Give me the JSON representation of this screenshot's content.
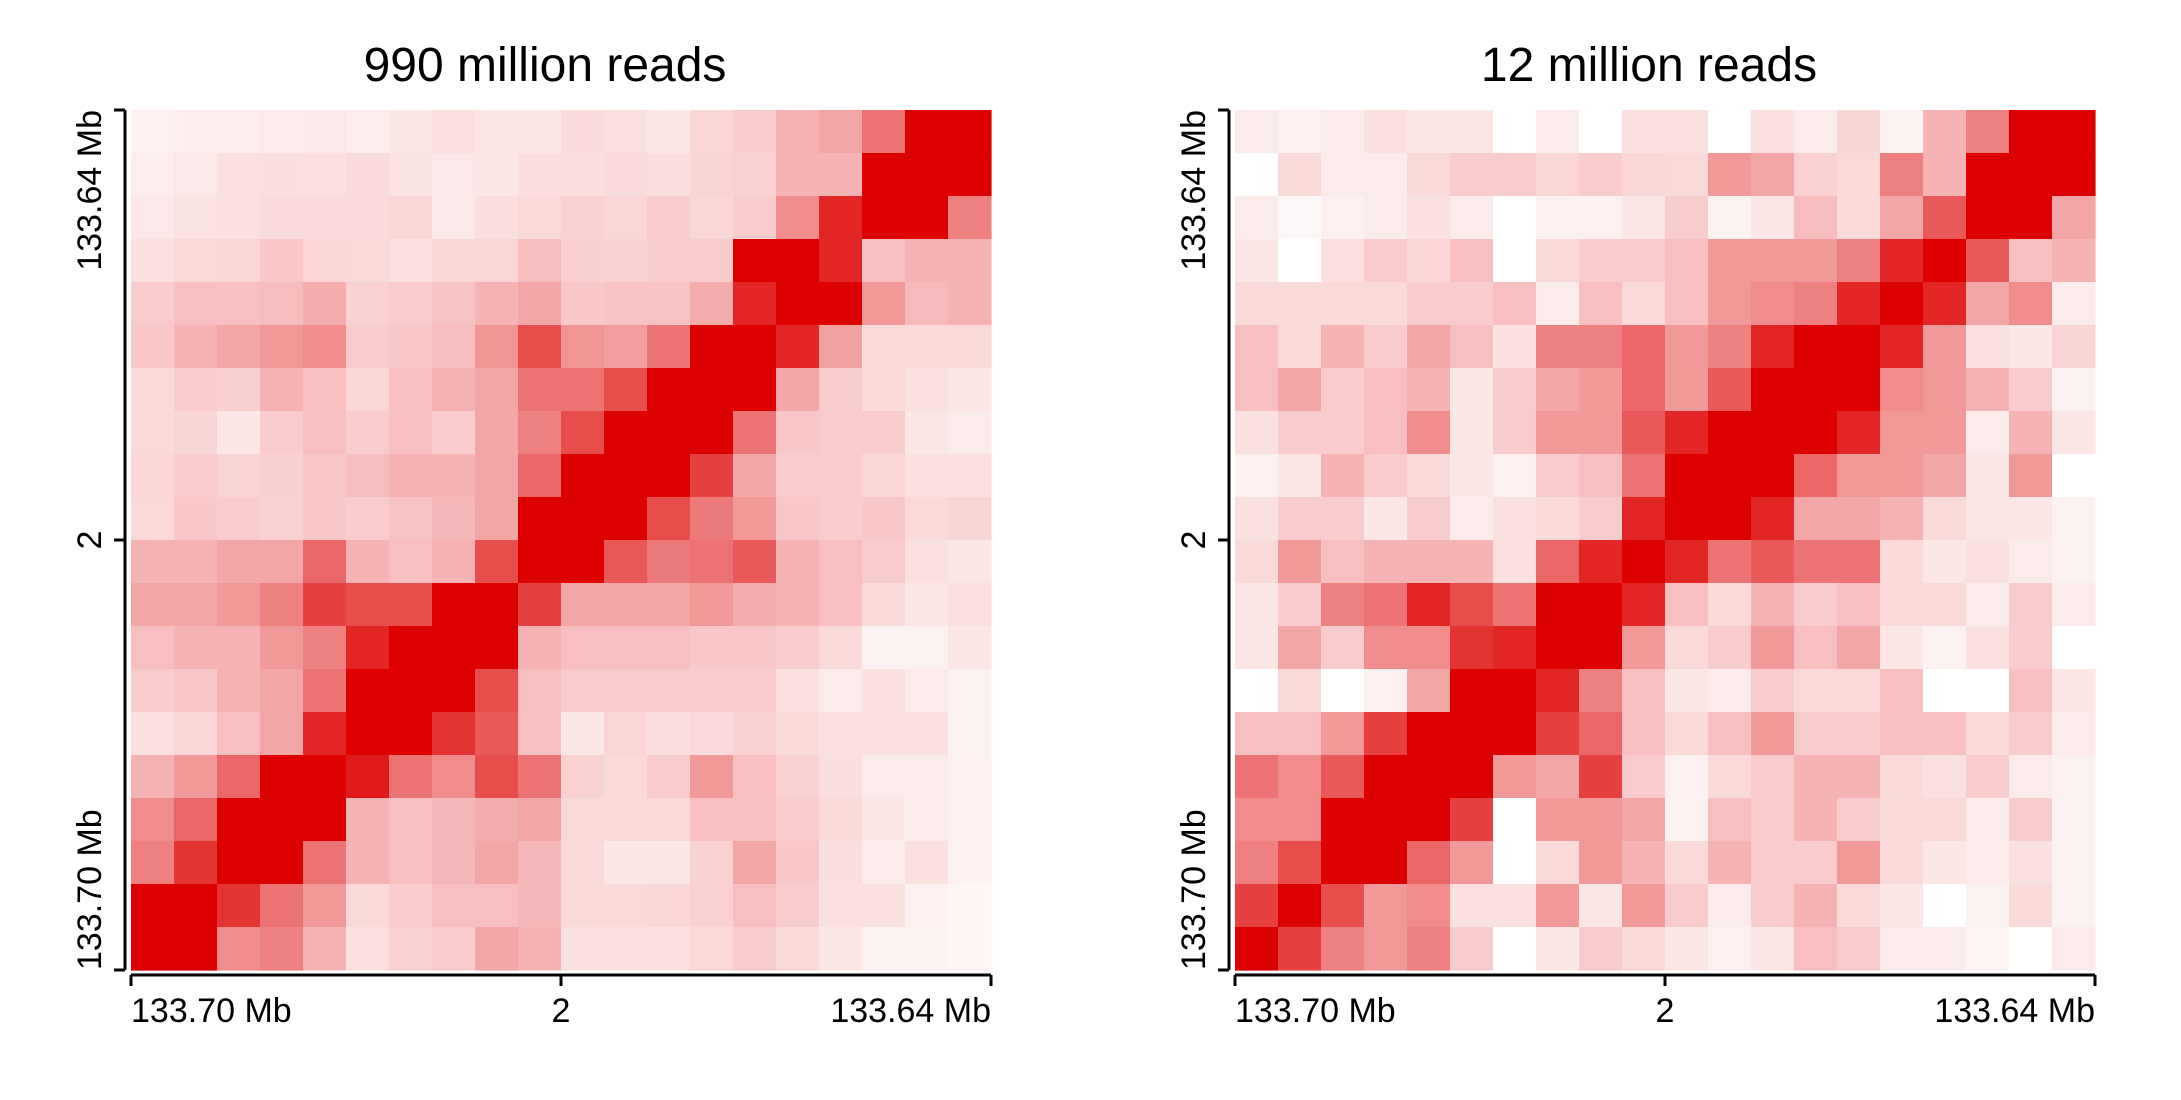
{
  "chart_data": [
    {
      "type": "heatmap",
      "title": "990 million reads",
      "color_low": "#ffffff",
      "color_high": "#dd0000",
      "grid_size": 20,
      "x_ticks": [
        "133.70 Mb",
        "2",
        "133.64 Mb"
      ],
      "y_ticks": [
        "133.70 Mb",
        "2",
        "133.64 Mb"
      ],
      "values": [
        [
          0.06,
          0.07,
          0.07,
          0.08,
          0.09,
          0.07,
          0.1,
          0.12,
          0.1,
          0.1,
          0.14,
          0.12,
          0.1,
          0.16,
          0.2,
          0.3,
          0.35,
          0.55,
          1.0,
          1.0
        ],
        [
          0.07,
          0.09,
          0.12,
          0.13,
          0.12,
          0.14,
          0.11,
          0.09,
          0.1,
          0.13,
          0.13,
          0.14,
          0.13,
          0.17,
          0.18,
          0.3,
          0.3,
          1.0,
          1.0,
          1.0
        ],
        [
          0.09,
          0.11,
          0.12,
          0.14,
          0.14,
          0.14,
          0.16,
          0.09,
          0.13,
          0.15,
          0.18,
          0.16,
          0.2,
          0.16,
          0.2,
          0.45,
          0.85,
          1.0,
          1.0,
          0.5
        ],
        [
          0.12,
          0.15,
          0.16,
          0.22,
          0.16,
          0.15,
          0.12,
          0.16,
          0.16,
          0.26,
          0.19,
          0.18,
          0.2,
          0.2,
          1.0,
          1.0,
          0.85,
          0.25,
          0.3,
          0.3
        ],
        [
          0.2,
          0.25,
          0.25,
          0.26,
          0.32,
          0.18,
          0.2,
          0.23,
          0.3,
          0.35,
          0.22,
          0.23,
          0.23,
          0.32,
          0.85,
          1.0,
          1.0,
          0.4,
          0.27,
          0.3
        ],
        [
          0.22,
          0.3,
          0.35,
          0.4,
          0.45,
          0.2,
          0.22,
          0.26,
          0.42,
          0.7,
          0.42,
          0.38,
          0.55,
          1.0,
          1.0,
          0.85,
          0.37,
          0.15,
          0.15,
          0.15
        ],
        [
          0.15,
          0.2,
          0.19,
          0.3,
          0.25,
          0.16,
          0.25,
          0.3,
          0.35,
          0.55,
          0.55,
          0.7,
          1.0,
          1.0,
          1.0,
          0.35,
          0.2,
          0.15,
          0.12,
          0.1
        ],
        [
          0.15,
          0.17,
          0.1,
          0.2,
          0.25,
          0.2,
          0.25,
          0.2,
          0.35,
          0.5,
          0.7,
          1.0,
          1.0,
          1.0,
          0.55,
          0.22,
          0.2,
          0.2,
          0.1,
          0.08
        ],
        [
          0.16,
          0.2,
          0.17,
          0.19,
          0.22,
          0.26,
          0.3,
          0.3,
          0.35,
          0.6,
          1.0,
          1.0,
          1.0,
          0.75,
          0.35,
          0.2,
          0.2,
          0.16,
          0.12,
          0.12
        ],
        [
          0.15,
          0.22,
          0.2,
          0.18,
          0.22,
          0.2,
          0.23,
          0.28,
          0.35,
          1.0,
          1.0,
          1.0,
          0.7,
          0.52,
          0.4,
          0.22,
          0.2,
          0.22,
          0.15,
          0.17
        ],
        [
          0.3,
          0.3,
          0.35,
          0.35,
          0.6,
          0.3,
          0.25,
          0.3,
          0.7,
          1.0,
          1.0,
          0.65,
          0.52,
          0.55,
          0.65,
          0.3,
          0.25,
          0.2,
          0.12,
          0.1
        ],
        [
          0.35,
          0.35,
          0.4,
          0.5,
          0.75,
          0.7,
          0.7,
          1.0,
          1.0,
          0.75,
          0.35,
          0.35,
          0.35,
          0.4,
          0.32,
          0.3,
          0.25,
          0.15,
          0.1,
          0.12
        ],
        [
          0.25,
          0.3,
          0.3,
          0.4,
          0.5,
          0.85,
          1.0,
          1.0,
          1.0,
          0.3,
          0.25,
          0.25,
          0.25,
          0.22,
          0.22,
          0.2,
          0.15,
          0.05,
          0.05,
          0.1
        ],
        [
          0.2,
          0.22,
          0.3,
          0.35,
          0.55,
          1.0,
          1.0,
          1.0,
          0.7,
          0.25,
          0.2,
          0.2,
          0.2,
          0.2,
          0.2,
          0.12,
          0.08,
          0.12,
          0.08,
          0.05
        ],
        [
          0.12,
          0.16,
          0.25,
          0.35,
          0.85,
          1.0,
          1.0,
          0.8,
          0.65,
          0.25,
          0.1,
          0.16,
          0.13,
          0.14,
          0.18,
          0.15,
          0.12,
          0.12,
          0.12,
          0.05
        ],
        [
          0.3,
          0.4,
          0.6,
          1.0,
          1.0,
          0.9,
          0.55,
          0.45,
          0.7,
          0.55,
          0.18,
          0.15,
          0.2,
          0.4,
          0.25,
          0.18,
          0.13,
          0.08,
          0.08,
          0.06
        ],
        [
          0.45,
          0.6,
          1.0,
          1.0,
          1.0,
          0.3,
          0.25,
          0.28,
          0.32,
          0.35,
          0.15,
          0.15,
          0.15,
          0.25,
          0.25,
          0.2,
          0.15,
          0.1,
          0.08,
          0.06
        ],
        [
          0.5,
          0.8,
          1.0,
          1.0,
          0.55,
          0.3,
          0.25,
          0.28,
          0.35,
          0.28,
          0.15,
          0.1,
          0.1,
          0.18,
          0.35,
          0.22,
          0.13,
          0.08,
          0.12,
          0.06
        ],
        [
          1.0,
          1.0,
          0.8,
          0.55,
          0.4,
          0.15,
          0.2,
          0.25,
          0.25,
          0.28,
          0.15,
          0.15,
          0.16,
          0.18,
          0.25,
          0.2,
          0.12,
          0.12,
          0.06,
          0.04
        ],
        [
          1.0,
          1.0,
          0.45,
          0.5,
          0.3,
          0.12,
          0.18,
          0.2,
          0.35,
          0.3,
          0.12,
          0.12,
          0.12,
          0.15,
          0.2,
          0.15,
          0.1,
          0.05,
          0.05,
          0.04
        ]
      ]
    },
    {
      "type": "heatmap",
      "title": "12 million reads",
      "color_low": "#ffffff",
      "color_high": "#dd0000",
      "grid_size": 20,
      "x_ticks": [
        "133.70 Mb",
        "2",
        "133.64 Mb"
      ],
      "y_ticks": [
        "133.70 Mb",
        "2",
        "133.64 Mb"
      ],
      "values": [
        [
          0.08,
          0.06,
          0.08,
          0.12,
          0.1,
          0.1,
          0.0,
          0.08,
          0.0,
          0.12,
          0.12,
          0.0,
          0.12,
          0.08,
          0.17,
          0.05,
          0.3,
          0.5,
          1.0,
          1.0
        ],
        [
          0.0,
          0.15,
          0.08,
          0.08,
          0.15,
          0.2,
          0.2,
          0.16,
          0.2,
          0.16,
          0.15,
          0.4,
          0.35,
          0.18,
          0.15,
          0.5,
          0.3,
          1.0,
          1.0,
          1.0
        ],
        [
          0.08,
          0.03,
          0.06,
          0.08,
          0.12,
          0.08,
          0.0,
          0.06,
          0.06,
          0.1,
          0.2,
          0.05,
          0.1,
          0.26,
          0.15,
          0.35,
          0.65,
          1.0,
          1.0,
          0.35
        ],
        [
          0.1,
          0.0,
          0.12,
          0.2,
          0.16,
          0.25,
          0.0,
          0.15,
          0.2,
          0.2,
          0.25,
          0.4,
          0.4,
          0.4,
          0.5,
          0.85,
          1.0,
          0.65,
          0.25,
          0.3
        ],
        [
          0.15,
          0.15,
          0.15,
          0.15,
          0.2,
          0.2,
          0.25,
          0.08,
          0.25,
          0.15,
          0.25,
          0.4,
          0.45,
          0.5,
          0.85,
          1.0,
          0.85,
          0.35,
          0.45,
          0.08
        ],
        [
          0.25,
          0.15,
          0.3,
          0.2,
          0.35,
          0.25,
          0.12,
          0.5,
          0.5,
          0.6,
          0.4,
          0.5,
          0.85,
          1.0,
          1.0,
          0.85,
          0.4,
          0.12,
          0.1,
          0.17
        ],
        [
          0.25,
          0.35,
          0.2,
          0.25,
          0.3,
          0.1,
          0.2,
          0.35,
          0.4,
          0.6,
          0.4,
          0.65,
          1.0,
          1.0,
          1.0,
          0.45,
          0.4,
          0.3,
          0.2,
          0.05
        ],
        [
          0.12,
          0.2,
          0.2,
          0.25,
          0.45,
          0.1,
          0.2,
          0.4,
          0.4,
          0.65,
          0.85,
          1.0,
          1.0,
          1.0,
          0.85,
          0.4,
          0.4,
          0.08,
          0.3,
          0.1
        ],
        [
          0.06,
          0.1,
          0.3,
          0.2,
          0.15,
          0.1,
          0.06,
          0.2,
          0.25,
          0.55,
          1.0,
          1.0,
          1.0,
          0.6,
          0.4,
          0.4,
          0.35,
          0.1,
          0.4,
          0.0
        ],
        [
          0.12,
          0.2,
          0.2,
          0.1,
          0.2,
          0.08,
          0.12,
          0.15,
          0.2,
          0.85,
          1.0,
          1.0,
          0.85,
          0.35,
          0.35,
          0.3,
          0.15,
          0.1,
          0.1,
          0.05
        ],
        [
          0.15,
          0.4,
          0.25,
          0.3,
          0.3,
          0.3,
          0.12,
          0.6,
          0.85,
          1.0,
          0.85,
          0.55,
          0.65,
          0.55,
          0.55,
          0.15,
          0.1,
          0.12,
          0.08,
          0.05
        ],
        [
          0.1,
          0.2,
          0.5,
          0.55,
          0.85,
          0.7,
          0.55,
          1.0,
          1.0,
          0.85,
          0.25,
          0.15,
          0.3,
          0.2,
          0.25,
          0.15,
          0.15,
          0.08,
          0.2,
          0.08
        ],
        [
          0.1,
          0.35,
          0.2,
          0.45,
          0.45,
          0.8,
          0.85,
          1.0,
          1.0,
          0.4,
          0.15,
          0.2,
          0.4,
          0.25,
          0.35,
          0.1,
          0.05,
          0.12,
          0.2,
          0.0
        ],
        [
          0.0,
          0.15,
          0.0,
          0.06,
          0.35,
          1.0,
          1.0,
          0.85,
          0.5,
          0.25,
          0.1,
          0.08,
          0.2,
          0.15,
          0.15,
          0.25,
          0.0,
          0.0,
          0.25,
          0.1
        ],
        [
          0.25,
          0.25,
          0.4,
          0.75,
          1.0,
          1.0,
          1.0,
          0.75,
          0.6,
          0.25,
          0.15,
          0.25,
          0.4,
          0.2,
          0.2,
          0.25,
          0.25,
          0.15,
          0.2,
          0.08
        ],
        [
          0.55,
          0.45,
          0.65,
          1.0,
          1.0,
          1.0,
          0.4,
          0.35,
          0.75,
          0.2,
          0.06,
          0.15,
          0.2,
          0.3,
          0.3,
          0.15,
          0.12,
          0.2,
          0.08,
          0.05
        ],
        [
          0.45,
          0.45,
          1.0,
          1.0,
          1.0,
          0.75,
          0.0,
          0.4,
          0.4,
          0.35,
          0.05,
          0.25,
          0.2,
          0.3,
          0.2,
          0.15,
          0.15,
          0.08,
          0.2,
          0.05
        ],
        [
          0.5,
          0.7,
          1.0,
          1.0,
          0.6,
          0.4,
          0.0,
          0.15,
          0.4,
          0.3,
          0.15,
          0.3,
          0.2,
          0.2,
          0.4,
          0.15,
          0.1,
          0.08,
          0.12,
          0.05
        ],
        [
          0.75,
          1.0,
          0.7,
          0.4,
          0.45,
          0.12,
          0.12,
          0.4,
          0.1,
          0.4,
          0.2,
          0.08,
          0.2,
          0.3,
          0.15,
          0.1,
          0.0,
          0.05,
          0.15,
          0.05
        ],
        [
          1.0,
          0.75,
          0.5,
          0.4,
          0.5,
          0.2,
          0.0,
          0.1,
          0.2,
          0.15,
          0.1,
          0.06,
          0.1,
          0.25,
          0.2,
          0.08,
          0.08,
          0.04,
          0.0,
          0.08
        ]
      ]
    }
  ]
}
